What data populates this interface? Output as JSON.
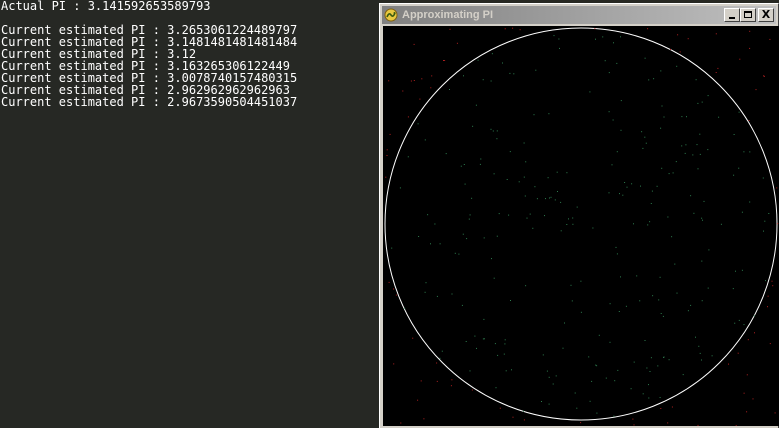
{
  "console": {
    "actual_line": "Actual PI : 3.141592653589793",
    "estimate_lines": [
      "Current estimated PI : 3.2653061224489797",
      "Current estimated PI : 3.1481481481481484",
      "Current estimated PI : 3.12",
      "Current estimated PI : 3.163265306122449",
      "Current estimated PI : 3.0078740157480315",
      "Current estimated PI : 2.962962962962963",
      "Current estimated PI : 2.9673590504451037"
    ]
  },
  "window": {
    "title": "Approximating PI",
    "app_icon": "snake-icon",
    "close_glyph": "X"
  },
  "colors": {
    "console_bg": "#262824",
    "console_text": "#ffffff",
    "canvas_bg": "#000000",
    "circle": "#ffffff",
    "inside_point": "#2e7d4f",
    "outside_point": "#b02020"
  }
}
